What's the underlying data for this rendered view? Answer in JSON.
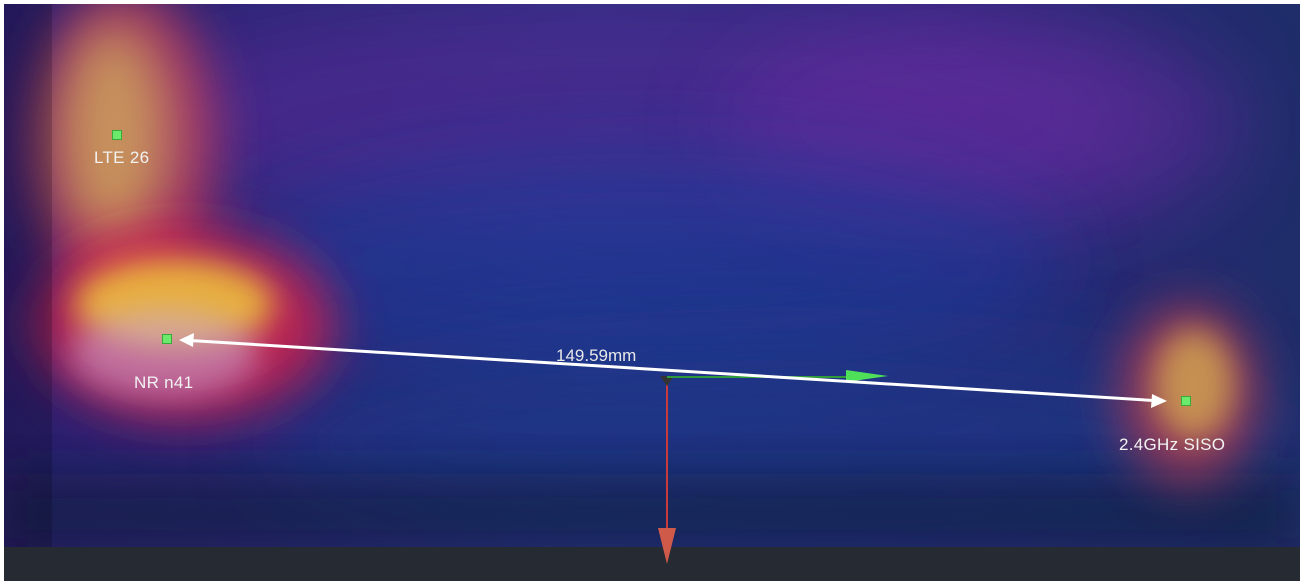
{
  "antennas": [
    {
      "label": "LTE 26"
    },
    {
      "label": "NR n41"
    },
    {
      "label": "2.4GHz SISO"
    }
  ],
  "measurement": {
    "distance_label": "149.59mm"
  },
  "colors": {
    "background": "#1a2a66",
    "hot_spot": "#f0d24a",
    "warm": "#d42a55",
    "cool": "#6a2a9a",
    "marker": "#6bea6b",
    "measure_line": "#ffffff",
    "axis_y": "#c93a3a",
    "axis_x": "#3fd24a"
  },
  "icons": {
    "marker": "square-marker-icon",
    "measure_arrow": "double-arrow-icon",
    "gizmo": "transform-gizmo-icon"
  }
}
